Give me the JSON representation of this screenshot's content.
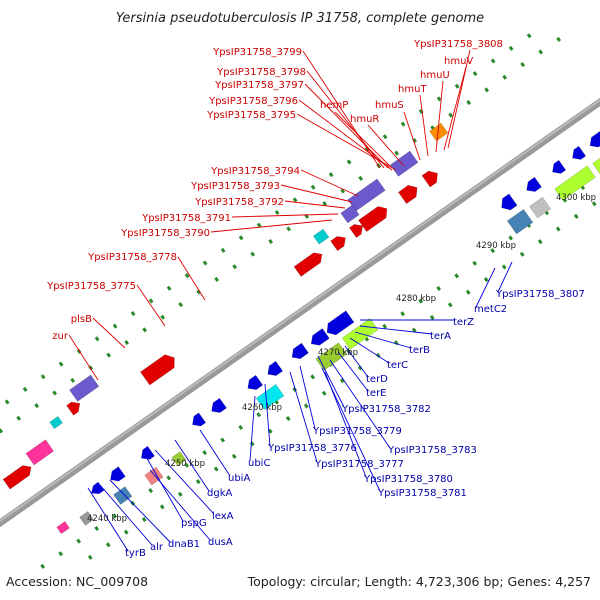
{
  "title": "Yersinia pseudotuberculosis IP 31758, complete genome",
  "footer": {
    "accession": "Accession: NC_009708",
    "stats": "Topology: circular; Length: 4,723,306 bp; Genes: 4,257"
  },
  "ruler_ticks": [
    "4240 kbp",
    "4250 kbp",
    "4260 kbp",
    "4270 kbp",
    "4280 kbp",
    "4290 kbp",
    "4300 kbp"
  ],
  "colors": {
    "forward": "#e00000",
    "reverse": "#0000dd",
    "backbone": "#7f7f7f",
    "label_forward": "#c00000",
    "label_reverse": "#0000aa",
    "dots": "#2a8a2a"
  },
  "labels_forward": [
    "YpsIP31758_3799",
    "YpsIP31758_3798",
    "YpsIP31758_3797",
    "YpsIP31758_3796",
    "YpsIP31758_3795",
    "hemP",
    "hmuR",
    "hmuS",
    "hmuT",
    "hmuU",
    "hmuV",
    "YpsIP31758_3808",
    "YpsIP31758_3794",
    "YpsIP31758_3793",
    "YpsIP31758_3792",
    "YpsIP31758_3791",
    "YpsIP31758_3790",
    "YpsIP31758_3778",
    "YpsIP31758_3775",
    "plsB",
    "zur"
  ],
  "labels_reverse": [
    "YpsIP31758_3807",
    "metC2",
    "terZ",
    "terA",
    "terB",
    "terC",
    "terD",
    "terE",
    "YpsIP31758_3782",
    "YpsIP31758_3779",
    "YpsIP31758_3783",
    "YpsIP31758_3776",
    "YpsIP31758_3777",
    "YpsIP31758_3780",
    "YpsIP31758_3781",
    "ubiC",
    "ubiA",
    "dgkA",
    "lexA",
    "pspG",
    "dusA",
    "dnaB1",
    "alr",
    "tyrB"
  ]
}
